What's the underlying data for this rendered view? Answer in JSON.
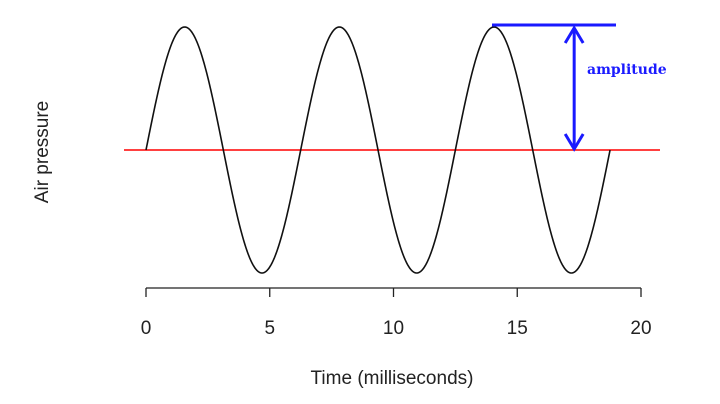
{
  "chart_data": {
    "type": "line",
    "title": "",
    "xlabel": "Time (milliseconds)",
    "ylabel": "Air pressure",
    "xlim": [
      0,
      20
    ],
    "ylim": [
      -1,
      1
    ],
    "x_ticks": [
      "0",
      "5",
      "10",
      "15",
      "20"
    ],
    "y_axis_visible": false,
    "grid": false,
    "series": [
      {
        "function": "sine",
        "amplitude": 1,
        "period_ms": 6.25,
        "x_start": 0,
        "x_end": 18.75,
        "color": "#111111"
      }
    ],
    "reference_line": {
      "y": 0,
      "color": "#ff0000"
    },
    "annotations": [
      {
        "text": "amplitude",
        "from_y": 0,
        "to_y": 1,
        "at_x": 17.3,
        "color": "#1a1aff"
      }
    ]
  }
}
